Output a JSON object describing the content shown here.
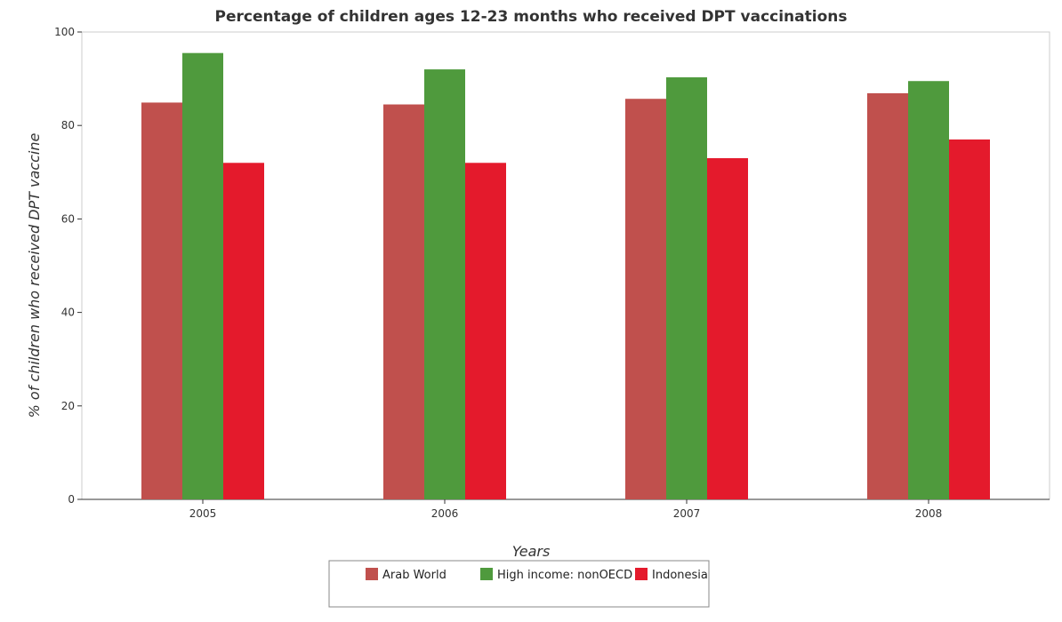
{
  "chart_data": {
    "type": "bar",
    "title": "Percentage of children ages 12-23 months who received DPT vaccinations",
    "xlabel": "Years",
    "ylabel": "% of children who received DPT vaccine",
    "categories": [
      "2005",
      "2006",
      "2007",
      "2008"
    ],
    "ylim": [
      0,
      100
    ],
    "yticks": [
      0,
      20,
      40,
      60,
      80,
      100
    ],
    "grid": false,
    "legend_position": "bottom-center",
    "series": [
      {
        "name": "Arab World",
        "color": "#c0504d",
        "values": [
          84.9,
          84.5,
          85.7,
          86.9
        ]
      },
      {
        "name": "High income: nonOECD",
        "color": "#4f9a3d",
        "values": [
          95.5,
          92.0,
          90.3,
          89.5
        ]
      },
      {
        "name": "Indonesia",
        "color": "#e41a2c",
        "values": [
          72.0,
          72.0,
          73.0,
          77.0
        ]
      }
    ]
  }
}
